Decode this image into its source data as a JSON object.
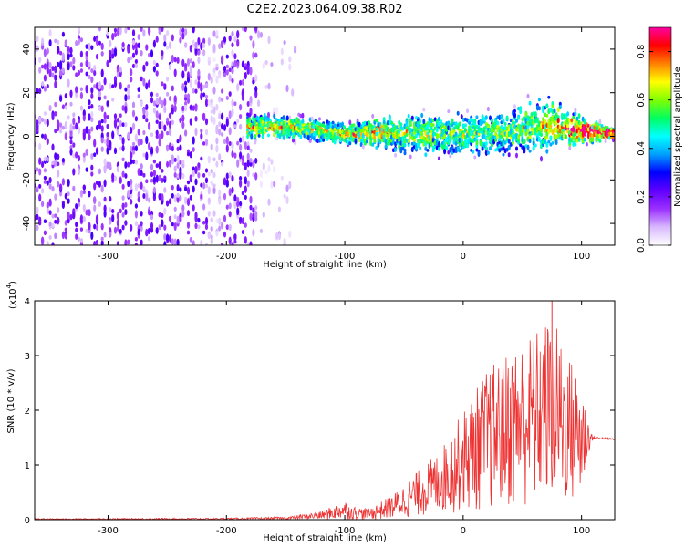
{
  "figure": {
    "title": "C2E2.2023.064.09.38.R02"
  },
  "chart_data": [
    {
      "type": "heatmap",
      "title": "C2E2.2023.064.09.38.R02",
      "xlabel": "Height of straight line (km)",
      "ylabel": "Frequency (Hz)",
      "xlim": [
        -362,
        128
      ],
      "ylim": [
        -50,
        50
      ],
      "x_ticks": [
        -300,
        -200,
        -100,
        0,
        100
      ],
      "y_ticks": [
        -40,
        -20,
        0,
        20,
        40
      ],
      "x_tick_labels": [
        "-300",
        "-200",
        "-100",
        "0",
        "100"
      ],
      "y_tick_labels": [
        "-40",
        "-20",
        "0",
        "20",
        "40"
      ],
      "grid": false,
      "colorbar": {
        "label": "Normalized spectral amplitude",
        "range": [
          0,
          0.9
        ],
        "ticks": [
          0.0,
          0.2,
          0.4,
          0.6,
          0.8
        ],
        "tick_labels": [
          "0.0",
          "0.2",
          "0.4",
          "0.6",
          "0.8"
        ],
        "colors": [
          "#ffffff",
          "#d8b8ff",
          "#9b30ff",
          "#6000ff",
          "#0000ff",
          "#00a0ff",
          "#00ffff",
          "#00ff60",
          "#80ff00",
          "#ffff00",
          "#ff8000",
          "#ff0000",
          "#ff00a0"
        ]
      },
      "ridge": {
        "description_points": [
          {
            "x": -180,
            "y": 4
          },
          {
            "x": -140,
            "y": 4
          },
          {
            "x": -100,
            "y": 1
          },
          {
            "x": -70,
            "y": 2
          },
          {
            "x": -40,
            "y": 1
          },
          {
            "x": 0,
            "y": 1
          },
          {
            "x": 40,
            "y": 2
          },
          {
            "x": 70,
            "y": 6
          },
          {
            "x": 95,
            "y": 3
          },
          {
            "x": 128,
            "y": 1
          }
        ],
        "spread_points": [
          {
            "x": -180,
            "y": 8
          },
          {
            "x": -100,
            "y": 6
          },
          {
            "x": -40,
            "y": 14
          },
          {
            "x": 0,
            "y": 13
          },
          {
            "x": 40,
            "y": 14
          },
          {
            "x": 70,
            "y": 19
          },
          {
            "x": 95,
            "y": 10
          },
          {
            "x": 128,
            "y": 3
          }
        ],
        "peak_amplitude_points": [
          {
            "x": -100,
            "y": 0.55
          },
          {
            "x": -75,
            "y": 0.6
          },
          {
            "x": -60,
            "y": 0.5
          },
          {
            "x": -10,
            "y": 0.4
          },
          {
            "x": 55,
            "y": 0.45
          },
          {
            "x": 110,
            "y": 0.85
          }
        ]
      },
      "noise_region": {
        "x_start": -362,
        "x_end": -140,
        "x_sparse_from": -175
      }
    },
    {
      "type": "line",
      "xlabel": "Height of straight line (km)",
      "ylabel": "SNR (10 * v/v)",
      "y_multiplier_label": "(x10",
      "y_multiplier_exp": "4",
      "y_multiplier_close": ")",
      "xlim": [
        -362,
        128
      ],
      "ylim": [
        0,
        4
      ],
      "x_ticks": [
        -300,
        -200,
        -100,
        0,
        100
      ],
      "y_ticks": [
        0,
        1,
        2,
        3,
        4
      ],
      "x_tick_labels": [
        "-300",
        "-200",
        "-100",
        "0",
        "100"
      ],
      "y_tick_labels": [
        "0",
        "1",
        "2",
        "3",
        "4"
      ],
      "grid": false,
      "series": [
        {
          "color": "#ee3333",
          "envelope": [
            {
              "x": -362,
              "y": 0.02
            },
            {
              "x": -200,
              "y": 0.03
            },
            {
              "x": -150,
              "y": 0.05
            },
            {
              "x": -120,
              "y": 0.15
            },
            {
              "x": -110,
              "y": 0.25
            },
            {
              "x": -100,
              "y": 0.35
            },
            {
              "x": -95,
              "y": 0.25
            },
            {
              "x": -80,
              "y": 0.2
            },
            {
              "x": -60,
              "y": 0.45
            },
            {
              "x": -40,
              "y": 0.85
            },
            {
              "x": -20,
              "y": 1.25
            },
            {
              "x": 0,
              "y": 2.0
            },
            {
              "x": 20,
              "y": 2.75
            },
            {
              "x": 40,
              "y": 3.15
            },
            {
              "x": 60,
              "y": 3.45
            },
            {
              "x": 75,
              "y": 3.75
            },
            {
              "x": 90,
              "y": 3.0
            },
            {
              "x": 100,
              "y": 2.6
            },
            {
              "x": 107,
              "y": 1.7
            },
            {
              "x": 110,
              "y": 1.5
            },
            {
              "x": 128,
              "y": 1.47
            }
          ],
          "floor": [
            {
              "x": -362,
              "y": 0.0
            },
            {
              "x": -60,
              "y": 0.0
            },
            {
              "x": -20,
              "y": 0.1
            },
            {
              "x": 20,
              "y": 0.15
            },
            {
              "x": 60,
              "y": 0.2
            },
            {
              "x": 100,
              "y": 0.25
            },
            {
              "x": 107,
              "y": 1.3
            },
            {
              "x": 110,
              "y": 1.45
            },
            {
              "x": 128,
              "y": 1.45
            }
          ],
          "peak": {
            "x": 75,
            "y": 4.0
          }
        }
      ]
    }
  ]
}
